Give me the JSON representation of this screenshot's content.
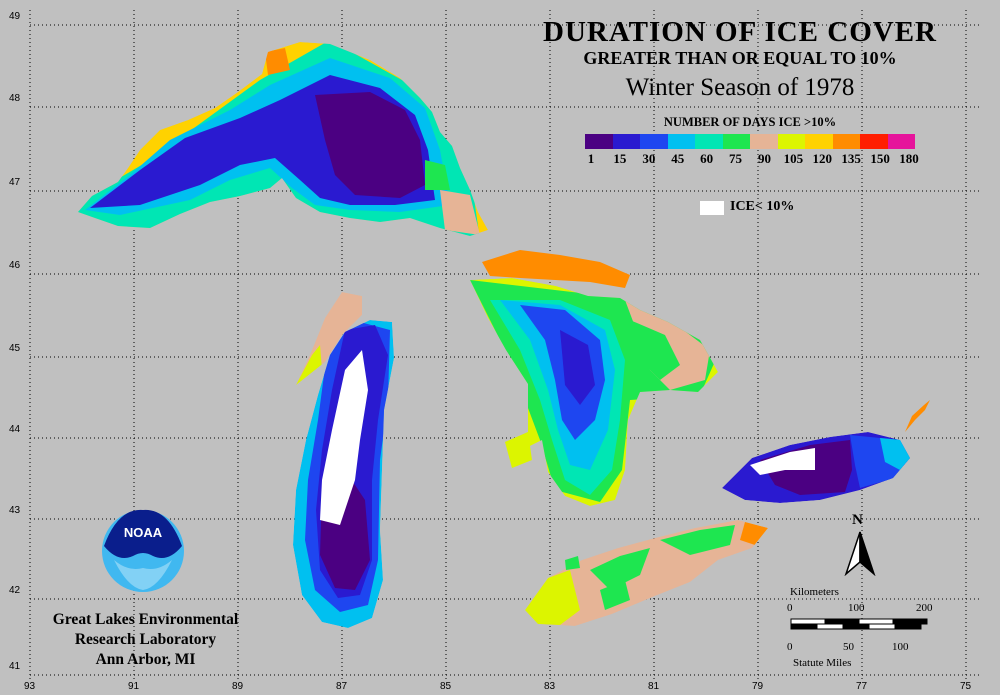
{
  "title": {
    "line1": "DURATION OF ICE COVER",
    "line2": "GREATER THAN OR EQUAL TO 10%",
    "line3": "Winter Season of 1978"
  },
  "legend": {
    "title": "NUMBER OF DAYS ICE >10%",
    "ticks": [
      "1",
      "15",
      "30",
      "45",
      "60",
      "75",
      "90",
      "105",
      "120",
      "135",
      "150",
      "180"
    ],
    "colors": [
      "#4b0082",
      "#2a1ad0",
      "#1e46f0",
      "#00c0f0",
      "#00e6b4",
      "#1ee650",
      "#e6b496",
      "#dcf500",
      "#ffd200",
      "#ff8c00",
      "#ff1e00",
      "#e6149b"
    ],
    "white_label": "ICE< 10%"
  },
  "axes": {
    "lon_labels": [
      "93",
      "91",
      "89",
      "87",
      "85",
      "83",
      "81",
      "79",
      "77",
      "75"
    ],
    "lat_labels": [
      "49",
      "48",
      "47",
      "46",
      "45",
      "44",
      "43",
      "42",
      "41"
    ]
  },
  "logo": {
    "text": "NOAA"
  },
  "credit": {
    "line1": "Great Lakes Environmental",
    "line2": "Research Laboratory",
    "line3": "Ann Arbor, MI"
  },
  "north": "N",
  "scale": {
    "km_label": "Kilometers",
    "km_ticks": [
      "0",
      "100",
      "200"
    ],
    "mi_ticks": [
      "0",
      "50",
      "100"
    ],
    "mi_label": "Statute Miles"
  }
}
